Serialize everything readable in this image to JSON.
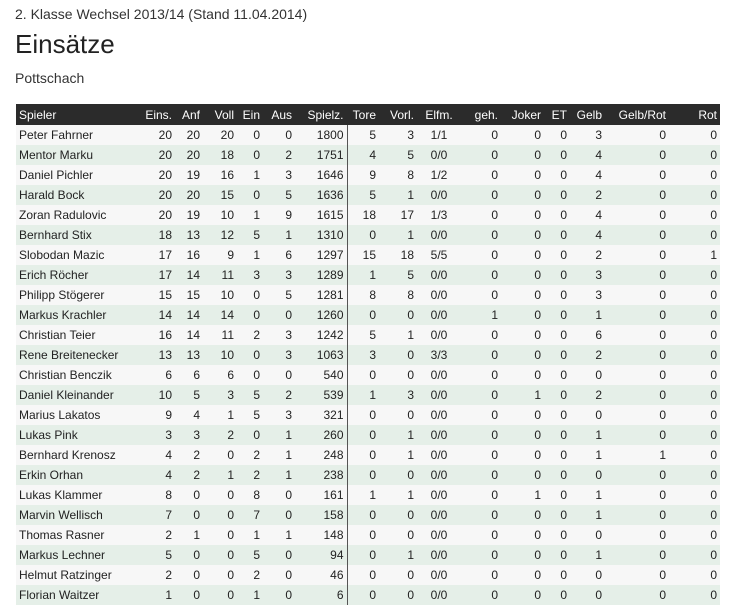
{
  "header": {
    "breadcrumb": "2. Klasse Wechsel 2013/14 (Stand 11.04.2014)",
    "title": "Einsätze",
    "subtitle": "Pottschach"
  },
  "table": {
    "columns": [
      "Spieler",
      "Eins.",
      "Anf",
      "Voll",
      "Ein",
      "Aus",
      "Spielz.",
      "Tore",
      "Vorl.",
      "Elfm.",
      "geh.",
      "Joker",
      "ET",
      "Gelb",
      "Gelb/Rot",
      "Rot"
    ],
    "rows": [
      [
        "Peter Fahrner",
        "20",
        "20",
        "20",
        "0",
        "0",
        "1800",
        "5",
        "3",
        "1/1",
        "0",
        "0",
        "0",
        "3",
        "0",
        "0"
      ],
      [
        "Mentor Marku",
        "20",
        "20",
        "18",
        "0",
        "2",
        "1751",
        "4",
        "5",
        "0/0",
        "0",
        "0",
        "0",
        "4",
        "0",
        "0"
      ],
      [
        "Daniel Pichler",
        "20",
        "19",
        "16",
        "1",
        "3",
        "1646",
        "9",
        "8",
        "1/2",
        "0",
        "0",
        "0",
        "4",
        "0",
        "0"
      ],
      [
        "Harald Bock",
        "20",
        "20",
        "15",
        "0",
        "5",
        "1636",
        "5",
        "1",
        "0/0",
        "0",
        "0",
        "0",
        "2",
        "0",
        "0"
      ],
      [
        "Zoran Radulovic",
        "20",
        "19",
        "10",
        "1",
        "9",
        "1615",
        "18",
        "17",
        "1/3",
        "0",
        "0",
        "0",
        "4",
        "0",
        "0"
      ],
      [
        "Bernhard Stix",
        "18",
        "13",
        "12",
        "5",
        "1",
        "1310",
        "0",
        "1",
        "0/0",
        "0",
        "0",
        "0",
        "4",
        "0",
        "0"
      ],
      [
        "Slobodan Mazic",
        "17",
        "16",
        "9",
        "1",
        "6",
        "1297",
        "15",
        "18",
        "5/5",
        "0",
        "0",
        "0",
        "2",
        "0",
        "1"
      ],
      [
        "Erich Röcher",
        "17",
        "14",
        "11",
        "3",
        "3",
        "1289",
        "1",
        "5",
        "0/0",
        "0",
        "0",
        "0",
        "3",
        "0",
        "0"
      ],
      [
        "Philipp Stögerer",
        "15",
        "15",
        "10",
        "0",
        "5",
        "1281",
        "8",
        "8",
        "0/0",
        "0",
        "0",
        "0",
        "3",
        "0",
        "0"
      ],
      [
        "Markus Krachler",
        "14",
        "14",
        "14",
        "0",
        "0",
        "1260",
        "0",
        "0",
        "0/0",
        "1",
        "0",
        "0",
        "1",
        "0",
        "0"
      ],
      [
        "Christian Teier",
        "16",
        "14",
        "11",
        "2",
        "3",
        "1242",
        "5",
        "1",
        "0/0",
        "0",
        "0",
        "0",
        "6",
        "0",
        "0"
      ],
      [
        "Rene Breitenecker",
        "13",
        "13",
        "10",
        "0",
        "3",
        "1063",
        "3",
        "0",
        "3/3",
        "0",
        "0",
        "0",
        "2",
        "0",
        "0"
      ],
      [
        "Christian Benczik",
        "6",
        "6",
        "6",
        "0",
        "0",
        "540",
        "0",
        "0",
        "0/0",
        "0",
        "0",
        "0",
        "0",
        "0",
        "0"
      ],
      [
        "Daniel Kleinander",
        "10",
        "5",
        "3",
        "5",
        "2",
        "539",
        "1",
        "3",
        "0/0",
        "0",
        "1",
        "0",
        "2",
        "0",
        "0"
      ],
      [
        "Marius Lakatos",
        "9",
        "4",
        "1",
        "5",
        "3",
        "321",
        "0",
        "0",
        "0/0",
        "0",
        "0",
        "0",
        "0",
        "0",
        "0"
      ],
      [
        "Lukas Pink",
        "3",
        "3",
        "2",
        "0",
        "1",
        "260",
        "0",
        "1",
        "0/0",
        "0",
        "0",
        "0",
        "1",
        "0",
        "0"
      ],
      [
        "Bernhard Krenosz",
        "4",
        "2",
        "0",
        "2",
        "1",
        "248",
        "0",
        "1",
        "0/0",
        "0",
        "0",
        "0",
        "1",
        "1",
        "0"
      ],
      [
        "Erkin Orhan",
        "4",
        "2",
        "1",
        "2",
        "1",
        "238",
        "0",
        "0",
        "0/0",
        "0",
        "0",
        "0",
        "0",
        "0",
        "0"
      ],
      [
        "Lukas Klammer",
        "8",
        "0",
        "0",
        "8",
        "0",
        "161",
        "1",
        "1",
        "0/0",
        "0",
        "1",
        "0",
        "1",
        "0",
        "0"
      ],
      [
        "Marvin Wellisch",
        "7",
        "0",
        "0",
        "7",
        "0",
        "158",
        "0",
        "0",
        "0/0",
        "0",
        "0",
        "0",
        "1",
        "0",
        "0"
      ],
      [
        "Thomas Rasner",
        "2",
        "1",
        "0",
        "1",
        "1",
        "148",
        "0",
        "0",
        "0/0",
        "0",
        "0",
        "0",
        "0",
        "0",
        "0"
      ],
      [
        "Markus Lechner",
        "5",
        "0",
        "0",
        "5",
        "0",
        "94",
        "0",
        "1",
        "0/0",
        "0",
        "0",
        "0",
        "1",
        "0",
        "0"
      ],
      [
        "Helmut Ratzinger",
        "2",
        "0",
        "0",
        "2",
        "0",
        "46",
        "0",
        "0",
        "0/0",
        "0",
        "0",
        "0",
        "0",
        "0",
        "0"
      ],
      [
        "Florian Waitzer",
        "1",
        "0",
        "0",
        "1",
        "0",
        "6",
        "0",
        "0",
        "0/0",
        "0",
        "0",
        "0",
        "0",
        "0",
        "0"
      ]
    ]
  }
}
